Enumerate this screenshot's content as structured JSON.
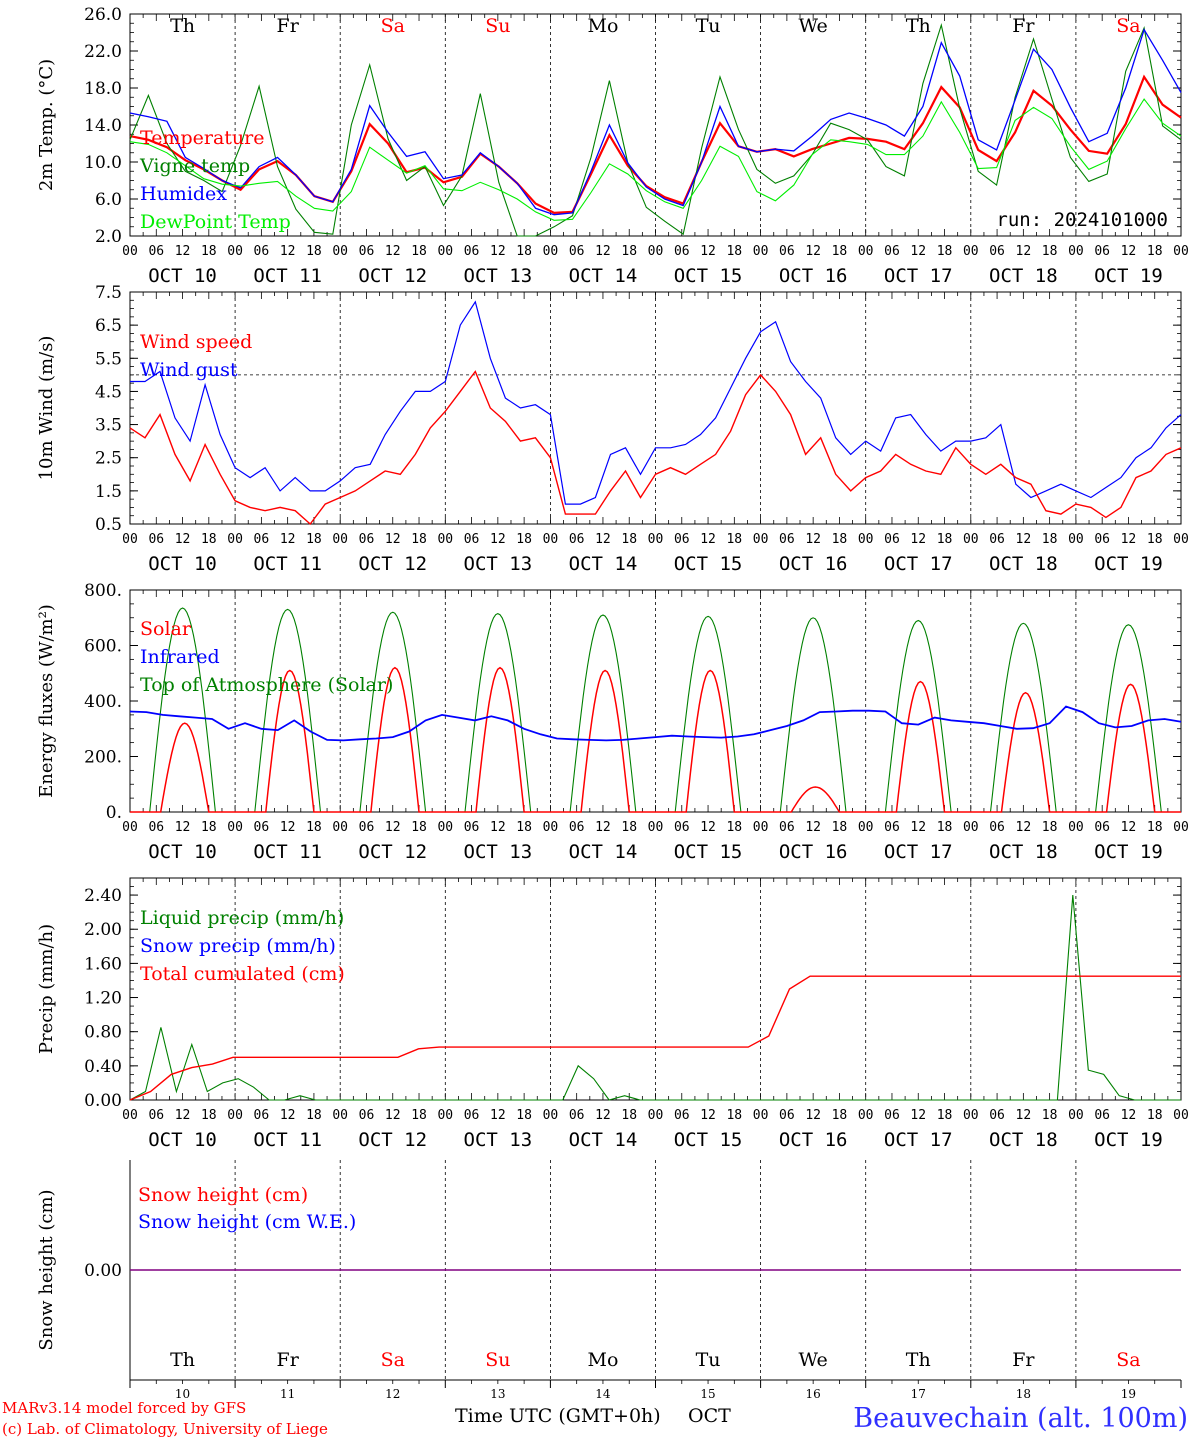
{
  "chart_data": [
    {
      "type": "line",
      "ylabel": "2m Temp. (°C)",
      "ylim": [
        2.0,
        26.0
      ],
      "yticks": [
        "26.0",
        "22.0",
        "18.0",
        "14.0",
        "10.0",
        "6.0",
        "2.0"
      ],
      "ytick_values": [
        26,
        22,
        18,
        14,
        10,
        6,
        2
      ],
      "annotation": "run: 2024101000",
      "series": [
        {
          "name": "Temperature",
          "color": "#ff0000",
          "values": [
            12.8,
            12.4,
            11.6,
            10.2,
            9.2,
            8.0,
            7.0,
            9.2,
            10.1,
            8.6,
            6.3,
            5.7,
            9.0,
            14.1,
            12.0,
            8.9,
            9.4,
            7.8,
            8.4,
            10.9,
            9.5,
            7.7,
            5.5,
            4.5,
            4.6,
            8.7,
            12.9,
            9.6,
            7.4,
            6.2,
            5.5,
            10.0,
            14.2,
            11.7,
            11.1,
            11.4,
            10.6,
            11.4,
            12.0,
            12.6,
            12.5,
            12.2,
            11.4,
            14.2,
            18.1,
            15.9,
            11.3,
            10.1,
            13.2,
            17.7,
            16.1,
            13.5,
            11.2,
            10.9,
            14.1,
            19.2,
            16.2,
            14.8
          ]
        },
        {
          "name": "Vigne temp",
          "color": "#008000",
          "values": [
            12.4,
            17.2,
            12.0,
            9.0,
            8.0,
            6.8,
            11.8,
            18.2,
            9.5,
            4.9,
            2.4,
            2.2,
            14.0,
            20.5,
            12.5,
            8.0,
            9.5,
            5.3,
            8.5,
            17.4,
            7.8,
            2.0,
            2.0,
            3.0,
            4.2,
            10.5,
            18.8,
            9.9,
            5.1,
            3.6,
            2.2,
            11.5,
            19.2,
            13.5,
            9.2,
            7.7,
            8.5,
            10.8,
            14.2,
            13.5,
            12.4,
            9.5,
            8.5,
            18.5,
            24.8,
            15.8,
            9.0,
            7.5,
            17.0,
            23.3,
            16.8,
            10.5,
            7.9,
            8.7,
            19.8,
            24.5,
            13.9,
            12.4
          ]
        },
        {
          "name": "Humidex",
          "color": "#0000ff",
          "values": [
            15.3,
            14.9,
            14.4,
            10.5,
            9.3,
            8.0,
            7.2,
            9.5,
            10.5,
            8.6,
            6.3,
            5.7,
            9.2,
            16.1,
            13.2,
            10.6,
            11.1,
            8.2,
            8.6,
            11.0,
            9.5,
            7.7,
            5.0,
            4.3,
            4.5,
            9.0,
            14.0,
            9.9,
            7.3,
            6.0,
            5.3,
            10.0,
            16.0,
            11.7,
            11.1,
            11.4,
            11.2,
            12.8,
            14.6,
            15.3,
            14.7,
            14.0,
            12.8,
            16.0,
            22.9,
            19.3,
            12.4,
            11.3,
            16.7,
            22.2,
            20.0,
            15.9,
            12.2,
            13.1,
            18.0,
            24.3,
            21.0,
            17.5
          ]
        },
        {
          "name": "DewPoint Temp",
          "color": "#00ee00",
          "values": [
            12.2,
            11.9,
            11.0,
            9.6,
            8.2,
            7.6,
            7.4,
            7.7,
            7.9,
            6.3,
            5.0,
            4.7,
            6.8,
            11.6,
            10.2,
            8.8,
            9.6,
            7.1,
            6.9,
            7.8,
            7.0,
            6.0,
            4.6,
            3.7,
            3.8,
            6.7,
            9.8,
            8.7,
            6.9,
            5.7,
            5.0,
            8.0,
            11.7,
            10.6,
            6.8,
            5.8,
            7.5,
            10.8,
            12.4,
            12.2,
            11.9,
            10.8,
            10.8,
            12.8,
            16.5,
            13.2,
            9.3,
            9.4,
            14.5,
            15.9,
            14.7,
            11.7,
            9.2,
            10.1,
            13.6,
            16.8,
            14.2,
            12.8
          ]
        }
      ]
    },
    {
      "type": "line",
      "ylabel": "10m Wind (m/s)",
      "ylim": [
        0.5,
        7.5
      ],
      "yticks": [
        "7.5",
        "6.5",
        "5.5",
        "4.5",
        "3.5",
        "2.5",
        "1.5",
        "0.5"
      ],
      "ytick_values": [
        7.5,
        6.5,
        5.5,
        4.5,
        3.5,
        2.5,
        1.5,
        0.5
      ],
      "reference_line": 5.0,
      "series": [
        {
          "name": "Wind speed",
          "color": "#ff0000",
          "values": [
            3.4,
            3.1,
            3.8,
            2.6,
            1.8,
            2.9,
            2.0,
            1.2,
            1.0,
            0.9,
            1.0,
            0.9,
            0.5,
            1.1,
            1.3,
            1.5,
            1.8,
            2.1,
            2.0,
            2.6,
            3.4,
            3.9,
            4.5,
            5.1,
            4.0,
            3.6,
            3.0,
            3.1,
            2.5,
            0.8,
            0.8,
            0.8,
            1.5,
            2.1,
            1.3,
            2.0,
            2.2,
            2.0,
            2.3,
            2.6,
            3.3,
            4.4,
            5.0,
            4.5,
            3.8,
            2.6,
            3.1,
            2.0,
            1.5,
            1.9,
            2.1,
            2.6,
            2.3,
            2.1,
            2.0,
            2.8,
            2.3,
            2.0,
            2.3,
            1.9,
            1.7,
            0.9,
            0.8,
            1.1,
            1.0,
            0.7,
            1.0,
            1.9,
            2.1,
            2.6,
            2.8
          ]
        },
        {
          "name": "Wind gust",
          "color": "#0000ff",
          "values": [
            4.8,
            4.8,
            5.1,
            3.7,
            3.0,
            4.7,
            3.2,
            2.2,
            1.9,
            2.2,
            1.5,
            1.9,
            1.5,
            1.5,
            1.8,
            2.2,
            2.3,
            3.2,
            3.9,
            4.5,
            4.5,
            4.8,
            6.5,
            7.2,
            5.5,
            4.3,
            4.0,
            4.1,
            3.8,
            1.1,
            1.1,
            1.3,
            2.6,
            2.8,
            2.0,
            2.8,
            2.8,
            2.9,
            3.2,
            3.7,
            4.6,
            5.5,
            6.3,
            6.6,
            5.4,
            4.8,
            4.3,
            3.1,
            2.6,
            3.0,
            2.7,
            3.7,
            3.8,
            3.2,
            2.7,
            3.0,
            3.0,
            3.1,
            3.5,
            1.7,
            1.3,
            1.5,
            1.7,
            1.5,
            1.3,
            1.6,
            1.9,
            2.5,
            2.8,
            3.4,
            3.8
          ]
        }
      ]
    },
    {
      "type": "line",
      "ylabel": "Energy fluxes (W/m²)",
      "ylim": [
        0,
        800
      ],
      "yticks": [
        "800.",
        "600.",
        "400.",
        "200.",
        "0."
      ],
      "ytick_values": [
        800,
        600,
        400,
        200,
        0
      ],
      "series": [
        {
          "name": "Solar",
          "color": "#ff0000",
          "peaks": [
            320,
            510,
            520,
            520,
            510,
            510,
            90,
            470,
            430,
            460
          ]
        },
        {
          "name": "Infrared",
          "color": "#0000ff",
          "values": [
            362,
            360,
            350,
            345,
            340,
            335,
            300,
            320,
            300,
            295,
            330,
            290,
            260,
            258,
            262,
            265,
            270,
            290,
            330,
            350,
            340,
            330,
            345,
            330,
            300,
            280,
            265,
            262,
            260,
            258,
            260,
            265,
            270,
            275,
            272,
            270,
            268,
            272,
            280,
            295,
            310,
            330,
            360,
            362,
            365,
            365,
            362,
            320,
            315,
            340,
            330,
            325,
            320,
            310,
            300,
            302,
            320,
            380,
            360,
            320,
            305,
            310,
            330,
            335,
            325
          ]
        },
        {
          "name": "Top of Atmosphere (Solar)",
          "color": "#008000",
          "peaks": [
            735,
            730,
            720,
            715,
            710,
            705,
            700,
            690,
            680,
            675
          ]
        }
      ]
    },
    {
      "type": "line",
      "ylabel": "Precip (mm/h)",
      "ylim": [
        0.0,
        2.6
      ],
      "yticks": [
        "2.40",
        "2.00",
        "1.60",
        "1.20",
        "0.80",
        "0.40",
        "0.00"
      ],
      "ytick_values": [
        2.4,
        2.0,
        1.6,
        1.2,
        0.8,
        0.4,
        0.0
      ],
      "series": [
        {
          "name": "Liquid precip (mm/h)",
          "color": "#008000",
          "values": [
            0.0,
            0.1,
            0.85,
            0.1,
            0.65,
            0.1,
            0.2,
            0.25,
            0.15,
            0.0,
            0.0,
            0.05,
            0.0,
            0.0,
            0.0,
            0.0,
            0.0,
            0.0,
            0.0,
            0.0,
            0.0,
            0.0,
            0.0,
            0.0,
            0.0,
            0.0,
            0.0,
            0.0,
            0.0,
            0.4,
            0.25,
            0.0,
            0.05,
            0.0,
            0.0,
            0.0,
            0.0,
            0.0,
            0.0,
            0.0,
            0.0,
            0.0,
            0.0,
            0.0,
            0.0,
            0.0,
            0.0,
            0.0,
            0.0,
            0.0,
            0.0,
            0.0,
            0.0,
            0.0,
            0.0,
            0.0,
            0.0,
            0.0,
            0.0,
            0.0,
            0.0,
            2.4,
            0.35,
            0.3,
            0.05,
            0.0,
            0.0,
            0.0,
            0.0
          ]
        },
        {
          "name": "Snow precip (mm/h)",
          "color": "#0000ff",
          "values": []
        },
        {
          "name": "Total cumulated (cm)",
          "color": "#ff0000",
          "values": [
            0.0,
            0.1,
            0.3,
            0.38,
            0.42,
            0.5,
            0.5,
            0.5,
            0.5,
            0.5,
            0.5,
            0.5,
            0.5,
            0.5,
            0.6,
            0.62,
            0.62,
            0.62,
            0.62,
            0.62,
            0.62,
            0.62,
            0.62,
            0.62,
            0.62,
            0.62,
            0.62,
            0.62,
            0.62,
            0.62,
            0.62,
            0.75,
            1.3,
            1.45,
            1.45,
            1.45,
            1.45,
            1.45,
            1.45,
            1.45,
            1.45,
            1.45,
            1.45,
            1.45,
            1.45,
            1.45,
            1.45,
            1.45,
            1.45,
            1.45,
            1.45,
            1.45
          ]
        }
      ]
    },
    {
      "type": "line",
      "ylabel": "Snow height (cm)",
      "yticks": [
        "0.00"
      ],
      "ytick_values": [
        0.0
      ],
      "series": [
        {
          "name": "Snow height (cm)",
          "color": "#ff0000",
          "values": [
            0,
            0
          ]
        },
        {
          "name": "Snow height (cm W.E.)",
          "color": "#0000ff",
          "values": [
            0,
            0
          ]
        }
      ]
    }
  ],
  "axis": {
    "hour_ticks": [
      "00",
      "06",
      "12",
      "18"
    ],
    "end_hour": "00",
    "dates": [
      "OCT 10",
      "OCT 11",
      "OCT 12",
      "OCT 13",
      "OCT 14",
      "OCT 15",
      "OCT 16",
      "OCT 17",
      "OCT 18",
      "OCT 19"
    ],
    "weekdays": [
      {
        "label": "Th",
        "color": "#000000"
      },
      {
        "label": "Fr",
        "color": "#000000"
      },
      {
        "label": "Sa",
        "color": "#ff0000"
      },
      {
        "label": "Su",
        "color": "#ff0000"
      },
      {
        "label": "Mo",
        "color": "#000000"
      },
      {
        "label": "Tu",
        "color": "#000000"
      },
      {
        "label": "We",
        "color": "#000000"
      },
      {
        "label": "Th",
        "color": "#000000"
      },
      {
        "label": "Fr",
        "color": "#000000"
      },
      {
        "label": "Sa",
        "color": "#ff0000"
      }
    ],
    "day_numbers": [
      "10",
      "11",
      "12",
      "13",
      "14",
      "15",
      "16",
      "17",
      "18",
      "19"
    ],
    "xlabel": "Time UTC (GMT+0h)",
    "month": "OCT"
  },
  "footer": {
    "credit_line1": "MARv3.14 model forced by GFS",
    "credit_line2": "(c) Lab. of Climatology, University of Liege",
    "station": "Beauvechain (alt. 100m)"
  },
  "colors": {
    "red": "#ff0000",
    "green": "#008000",
    "blue": "#0000ff",
    "lightgreen": "#00ee00",
    "snow": "#800080"
  }
}
